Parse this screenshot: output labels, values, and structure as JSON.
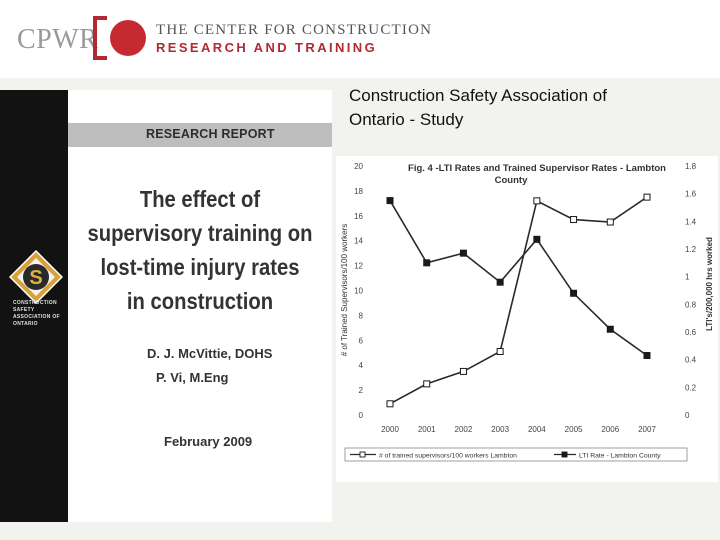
{
  "header": {
    "logo_text": "CPWR",
    "org_line1": "THE CENTER FOR CONSTRUCTION",
    "org_line2": "RESEARCH AND TRAINING",
    "brand_color": "#b02a30"
  },
  "slide": {
    "title_line1": "Construction Safety Association of",
    "title_line2": "Ontario - Study"
  },
  "report_cover": {
    "badge_letter": "S",
    "association_lines": [
      "CONSTRUCTION",
      "SAFETY",
      "ASSOCIATION OF",
      "ONTARIO"
    ],
    "band_label": "RESEARCH REPORT",
    "title_lines": [
      "The effect of",
      "supervisory training on",
      "lost-time injury rates",
      "in construction"
    ],
    "author1": "D. J. McVittie, DOHS",
    "author2": "P. Vi, M.Eng",
    "date": "February 2009"
  },
  "chart_data": {
    "type": "line",
    "title_line1": "Fig. 4 -LTI Rates and Trained Supervisor Rates - Lambton",
    "title_line2": "County",
    "categories": [
      "2000",
      "2001",
      "2002",
      "2003",
      "2004",
      "2005",
      "2006",
      "2007"
    ],
    "ylabel_left": "# of Trained Supervisors/100 workers",
    "ylabel_right": "LTI's/200,000 hrs worked",
    "ylim_left": [
      0,
      20
    ],
    "yticks_left": [
      "0",
      "2",
      "4",
      "6",
      "8",
      "10",
      "12",
      "14",
      "16",
      "18",
      "20"
    ],
    "ylim_right": [
      0,
      1.8
    ],
    "yticks_right": [
      "0",
      "0.2",
      "0.4",
      "0.6",
      "0.8",
      "1",
      "1.2",
      "1.4",
      "1.6",
      "1.8"
    ],
    "series": [
      {
        "name": "# of trained supervisors/100 workers Lambton",
        "axis": "left",
        "marker": "square-open",
        "values": [
          0.9,
          2.5,
          3.5,
          5.1,
          17.2,
          15.7,
          15.5,
          17.5
        ]
      },
      {
        "name": "LTI Rate - Lambton County",
        "axis": "right",
        "marker": "square-filled",
        "values": [
          1.55,
          1.1,
          1.17,
          0.96,
          1.27,
          0.88,
          0.62,
          0.43
        ]
      }
    ],
    "legend_position": "bottom",
    "grid": false
  }
}
